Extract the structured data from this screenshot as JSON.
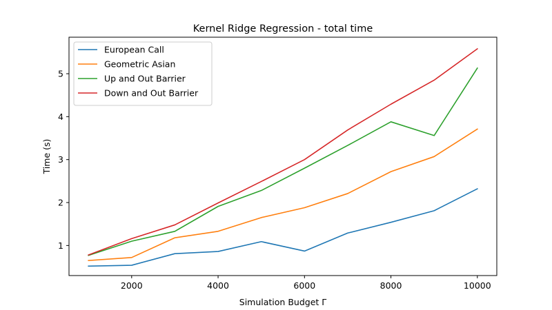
{
  "chart_data": {
    "type": "line",
    "title": "Kernel Ridge Regression - total time",
    "xlabel": "Simulation Budget Γ",
    "ylabel": "Time (s)",
    "x": [
      1000,
      2000,
      3000,
      4000,
      5000,
      6000,
      7000,
      8000,
      9000,
      10000
    ],
    "xlim": [
      550,
      10450
    ],
    "ylim": [
      0.3,
      5.85
    ],
    "xticks": [
      2000,
      4000,
      6000,
      8000,
      10000
    ],
    "yticks": [
      1,
      2,
      3,
      4,
      5
    ],
    "grid": false,
    "legend_position": "top-left",
    "series": [
      {
        "name": "European Call",
        "color": "#1f77b4",
        "values": [
          0.52,
          0.54,
          0.81,
          0.86,
          1.09,
          0.87,
          1.29,
          1.54,
          1.81,
          2.32
        ]
      },
      {
        "name": "Geometric Asian",
        "color": "#ff7f0e",
        "values": [
          0.65,
          0.72,
          1.18,
          1.33,
          1.65,
          1.88,
          2.21,
          2.72,
          3.07,
          3.71
        ]
      },
      {
        "name": "Up and Out Barrier",
        "color": "#2ca02c",
        "values": [
          0.77,
          1.1,
          1.33,
          1.91,
          2.28,
          2.8,
          3.33,
          3.88,
          3.56,
          5.13
        ]
      },
      {
        "name": "Down and Out Barrier",
        "color": "#d62728",
        "values": [
          0.78,
          1.16,
          1.48,
          1.99,
          2.49,
          3.0,
          3.69,
          4.29,
          4.85,
          5.58
        ]
      }
    ]
  }
}
